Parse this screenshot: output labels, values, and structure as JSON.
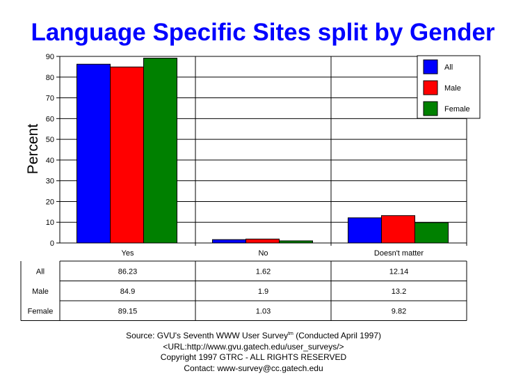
{
  "chart_data": {
    "type": "bar",
    "title": "Language Specific Sites split by Gender",
    "ylabel": "Percent",
    "xlabel": "",
    "ylim": [
      0,
      90
    ],
    "yticks": [
      0,
      10,
      20,
      30,
      40,
      50,
      60,
      70,
      80,
      90
    ],
    "grid": true,
    "legend_position": "top-right",
    "categories": [
      "Yes",
      "No",
      "Doesn't matter"
    ],
    "series": [
      {
        "name": "All",
        "color": "#0000ff",
        "values": [
          86.23,
          1.62,
          12.14
        ],
        "labels": [
          "86.23",
          "1.62",
          "12.14"
        ]
      },
      {
        "name": "Male",
        "color": "#ff0000",
        "values": [
          84.9,
          1.9,
          13.2
        ],
        "labels": [
          "84.9",
          "1.9",
          "13.2"
        ]
      },
      {
        "name": "Female",
        "color": "#008000",
        "values": [
          89.15,
          1.03,
          9.82
        ],
        "labels": [
          "89.15",
          "1.03",
          "9.82"
        ]
      }
    ]
  },
  "footer": {
    "source_prefix": "Source: GVU's Seventh WWW User Survey",
    "source_tm": "tm",
    "source_suffix": " (Conducted April 1997)",
    "url": "<URL:http://www.gvu.gatech.edu/user_surveys/>",
    "copyright": "Copyright 1997 GTRC - ALL RIGHTS RESERVED",
    "contact": "Contact: www-survey@cc.gatech.edu"
  },
  "colors": {
    "title": "#0000ff"
  }
}
